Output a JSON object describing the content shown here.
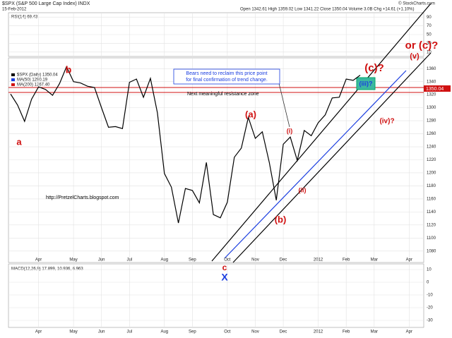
{
  "chart_data": {
    "type": "line",
    "header": {
      "symbol": "$SPX (S&P 500 Large Cap Index) INDX",
      "date": "15-Feb-2012",
      "quote": "Open 1342.61 High 1359.02 Low 1341.22 Close 1350.04 Volume 3.0B Chg +14.61 (+1.10%)",
      "credit": "© StockCharts.com"
    },
    "rsi": {
      "label": "RSI(14) 69.43",
      "ticks": [
        90,
        70,
        50,
        30,
        10
      ]
    },
    "legend": [
      "$SPX (Daily) 1350.04",
      "MA(50) 1290.19",
      "MA(200) 1267.40"
    ],
    "last_price_label": "1350.04",
    "macd": {
      "label": "MACD(12,26,9) 17.899, 10.936, 6.963",
      "ticks": [
        10,
        0,
        -10,
        -20,
        -30
      ]
    },
    "categories": [
      null,
      null,
      null,
      null,
      "Apr",
      null,
      null,
      null,
      null,
      "May",
      null,
      null,
      null,
      "Jun",
      null,
      null,
      null,
      "Jul",
      null,
      null,
      null,
      null,
      "Aug",
      null,
      null,
      null,
      "Sep",
      null,
      null,
      null,
      null,
      "Oct",
      null,
      null,
      null,
      "Nov",
      null,
      null,
      null,
      "Dec",
      null,
      null,
      null,
      null,
      "2012",
      null,
      null,
      null,
      "Feb",
      null,
      null,
      null,
      "Mar",
      null,
      null,
      null,
      null,
      "Apr",
      null
    ],
    "series": [
      {
        "name": "$SPX",
        "color": "#000000",
        "values": [
          1321,
          1304,
          1279,
          1313,
          1332,
          1328,
          1319,
          1337,
          1363,
          1340,
          1338,
          1333,
          1331,
          1300,
          1270,
          1271,
          1268,
          1339,
          1344,
          1316,
          1345,
          1292,
          1199,
          1178,
          1123,
          1176,
          1173,
          1154,
          1216,
          1136,
          1131,
          1155,
          1224,
          1238,
          1285,
          1253,
          1263,
          1216,
          1158,
          1244,
          1255,
          1219,
          1265,
          1257,
          1277,
          1289,
          1315,
          1316,
          1344,
          1342,
          1350,
          null,
          null,
          null,
          null,
          null,
          null,
          null,
          null
        ]
      }
    ],
    "ylim": [
      1070,
      1370
    ],
    "yticks": [
      1080,
      1100,
      1120,
      1140,
      1160,
      1180,
      1200,
      1220,
      1240,
      1260,
      1280,
      1300,
      1320,
      1340,
      1360
    ],
    "grid": true,
    "annotations": [
      "b",
      "a",
      "(a)",
      "(b)",
      "(i)",
      "(ii)",
      "(iii)?",
      "(iv)?",
      "(v)",
      "(c)?",
      "or (c)?",
      "c",
      "X"
    ],
    "notes": {
      "bears": [
        "Bears need to reclaim this price point",
        "for final confirmation of trend change."
      ],
      "resistance": "Next meaningful resistance zone",
      "url": "http://PretzelCharts.blogspot.com"
    }
  }
}
